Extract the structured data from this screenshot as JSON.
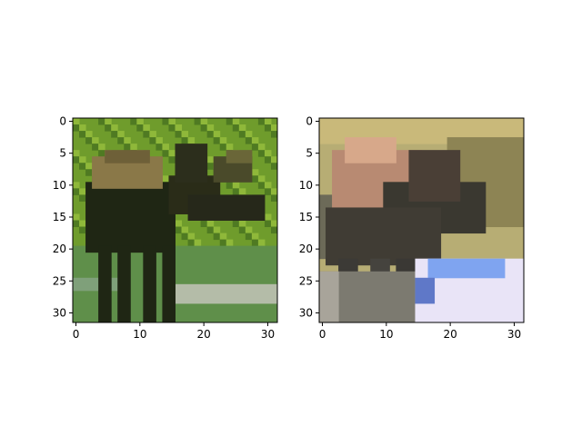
{
  "figure": {
    "panels": [
      {
        "name": "left-image-panel",
        "image_description_icon": "moose-photo-pixelated",
        "palette": {
          "bg_green": "#6f9c2c",
          "bg_green_light": "#8fb83a",
          "bg_green_dark": "#4f7a22",
          "body": "#1f2614",
          "head_tan": "#8a7848",
          "water": "#b4bca8",
          "grass_low": "#5f8f4a"
        },
        "x_ticks": [
          "0",
          "10",
          "20",
          "30"
        ],
        "y_ticks": [
          "0",
          "5",
          "10",
          "15",
          "20",
          "25",
          "30"
        ]
      },
      {
        "name": "right-image-panel",
        "image_description_icon": "moose-photo-reconstruction-blurry",
        "palette": {
          "bg_yellow": "#b7ad74",
          "bg_olive": "#8d8454",
          "body": "#3a3830",
          "body_pink": "#b88a72",
          "water_blue": "#7fa4f0",
          "water_white": "#e9e4f7",
          "ground_gray": "#7c7a70"
        },
        "x_ticks": [
          "0",
          "10",
          "20",
          "30"
        ],
        "y_ticks": [
          "0",
          "5",
          "10",
          "15",
          "20",
          "25",
          "30"
        ]
      }
    ]
  }
}
